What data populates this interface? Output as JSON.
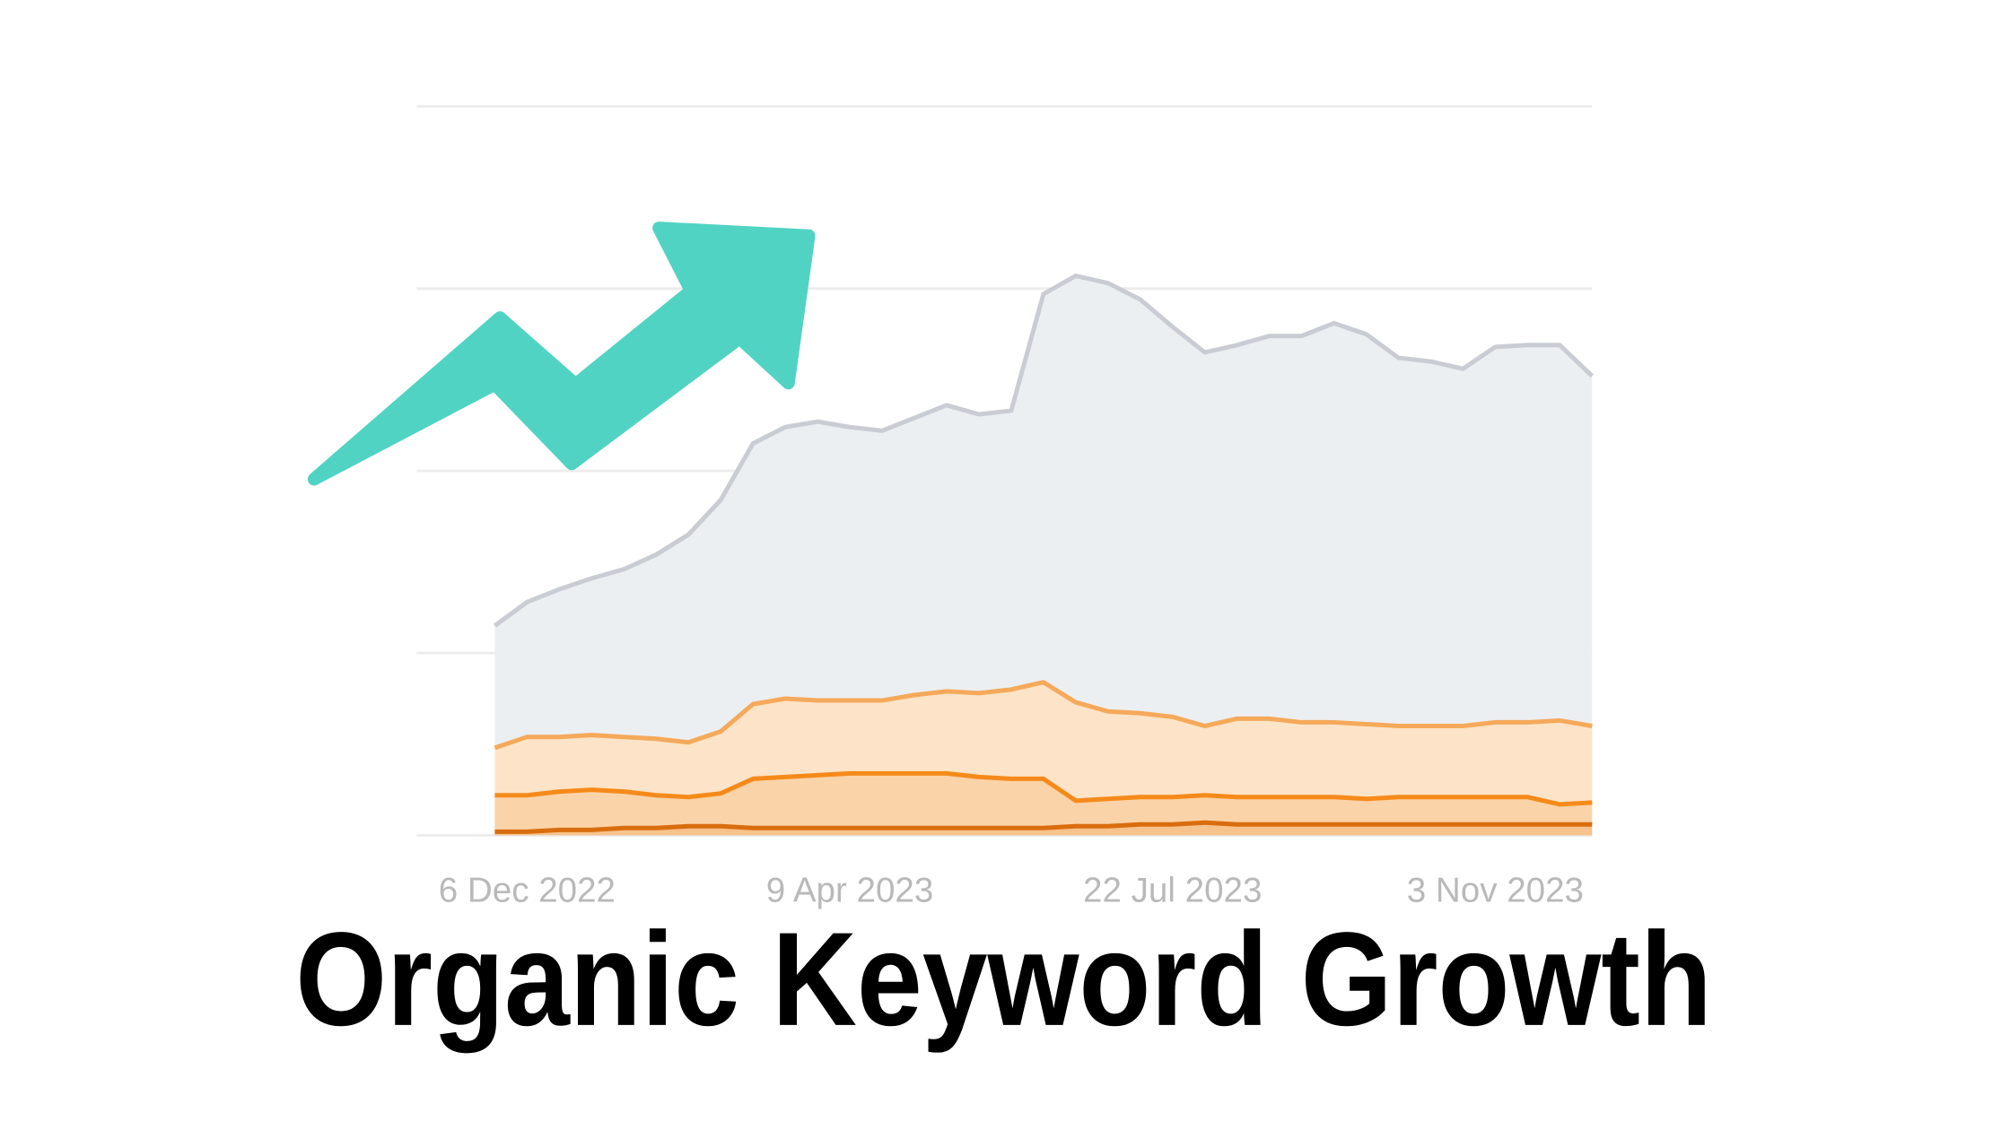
{
  "chart_data": {
    "type": "stacked-area",
    "title": "Organic Keyword Growth",
    "categories": [
      null,
      "6 Dec 2022",
      null,
      null,
      null,
      null,
      null,
      null,
      null,
      null,
      null,
      "9 Apr 2023",
      null,
      null,
      null,
      null,
      null,
      null,
      null,
      null,
      null,
      "22 Jul 2023",
      null,
      null,
      null,
      null,
      null,
      null,
      null,
      null,
      null,
      "3 Nov 2023",
      null,
      null,
      null
    ],
    "ylim": [
      0,
      4
    ],
    "gridlines": [
      0,
      1,
      2,
      3,
      4
    ],
    "series": [
      {
        "color": "#d96d0e",
        "fill": "#f7c28c",
        "values": [
          0.02,
          0.02,
          0.03,
          0.03,
          0.04,
          0.04,
          0.05,
          0.05,
          0.04,
          0.04,
          0.04,
          0.04,
          0.04,
          0.04,
          0.04,
          0.04,
          0.04,
          0.04,
          0.05,
          0.05,
          0.06,
          0.06,
          0.07,
          0.06,
          0.06,
          0.06,
          0.06,
          0.06,
          0.06,
          0.06,
          0.06,
          0.06,
          0.06,
          0.06,
          0.06
        ]
      },
      {
        "color": "#f58a1a",
        "fill": "#fbd3a8",
        "values": [
          0.2,
          0.2,
          0.21,
          0.22,
          0.2,
          0.18,
          0.16,
          0.18,
          0.27,
          0.28,
          0.29,
          0.3,
          0.3,
          0.3,
          0.3,
          0.28,
          0.27,
          0.27,
          0.14,
          0.15,
          0.15,
          0.15,
          0.15,
          0.15,
          0.15,
          0.15,
          0.15,
          0.14,
          0.15,
          0.15,
          0.15,
          0.15,
          0.15,
          0.11,
          0.12
        ]
      },
      {
        "color": "#f5a95a",
        "fill": "#fde4c8",
        "values": [
          0.26,
          0.32,
          0.3,
          0.3,
          0.3,
          0.31,
          0.3,
          0.34,
          0.41,
          0.43,
          0.41,
          0.4,
          0.4,
          0.43,
          0.45,
          0.46,
          0.49,
          0.53,
          0.54,
          0.48,
          0.46,
          0.44,
          0.38,
          0.43,
          0.43,
          0.41,
          0.41,
          0.41,
          0.39,
          0.39,
          0.39,
          0.41,
          0.41,
          0.46,
          0.42
        ]
      },
      {
        "color": "#c9cdd3",
        "fill": "#eceff2",
        "values": [
          0.67,
          0.74,
          0.81,
          0.86,
          0.92,
          1.01,
          1.14,
          1.27,
          1.43,
          1.49,
          1.53,
          1.5,
          1.48,
          1.52,
          1.57,
          1.53,
          1.53,
          2.13,
          2.34,
          2.35,
          2.27,
          2.14,
          2.05,
          2.05,
          2.1,
          2.12,
          2.19,
          2.14,
          2.02,
          2.0,
          1.96,
          2.06,
          2.07,
          2.06,
          1.92
        ]
      }
    ]
  }
}
